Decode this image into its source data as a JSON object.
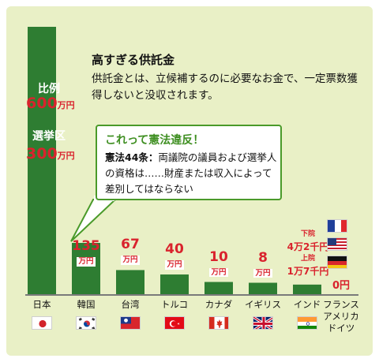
{
  "panel": {
    "title": "高すぎる供託金",
    "description": "供託金とは、立候補するのに必要なお金で、一定票数獲得しないと没収されます。"
  },
  "japan_bar": {
    "label1": "比例",
    "value1": "600",
    "unit1": "万円",
    "label2": "選挙区",
    "value2": "300",
    "unit2": "万円"
  },
  "callout": {
    "heading": "これって憲法違反！",
    "article": "憲法44条：",
    "text": "両議院の議員および選挙人の資格は……財産または収入によって差別してはならない"
  },
  "small_notes": {
    "lower_house_label": "下院",
    "lower_house_amount": "4万2千円",
    "upper_house_label": "上院",
    "upper_house_amount": "1万7千円",
    "zero_label": "0円"
  },
  "colors": {
    "bar": "#2e7d32",
    "value": "#d9232d",
    "background": "#e9f0c6"
  },
  "chart_data": {
    "type": "bar",
    "unit": "万円",
    "categories": [
      "日本",
      "韓国",
      "台湾",
      "トルコ",
      "カナダ",
      "イギリス",
      "インド",
      "フランス アメリカ ドイツ"
    ],
    "values": [
      600,
      135,
      67,
      40,
      10,
      8,
      4.2,
      0
    ],
    "value_labels": [
      "",
      "135",
      "67",
      "40",
      "10",
      "8",
      "",
      ""
    ],
    "value_units": [
      "",
      "万円",
      "万円",
      "万円",
      "万円",
      "万円",
      "",
      ""
    ],
    "flags": [
      "flag-japan-icon",
      "flag-korea-icon",
      "flag-taiwan-icon",
      "flag-turkey-icon",
      "flag-canada-icon",
      "flag-uk-icon",
      "flag-india-icon",
      ""
    ],
    "grid": false,
    "legend": "none"
  }
}
